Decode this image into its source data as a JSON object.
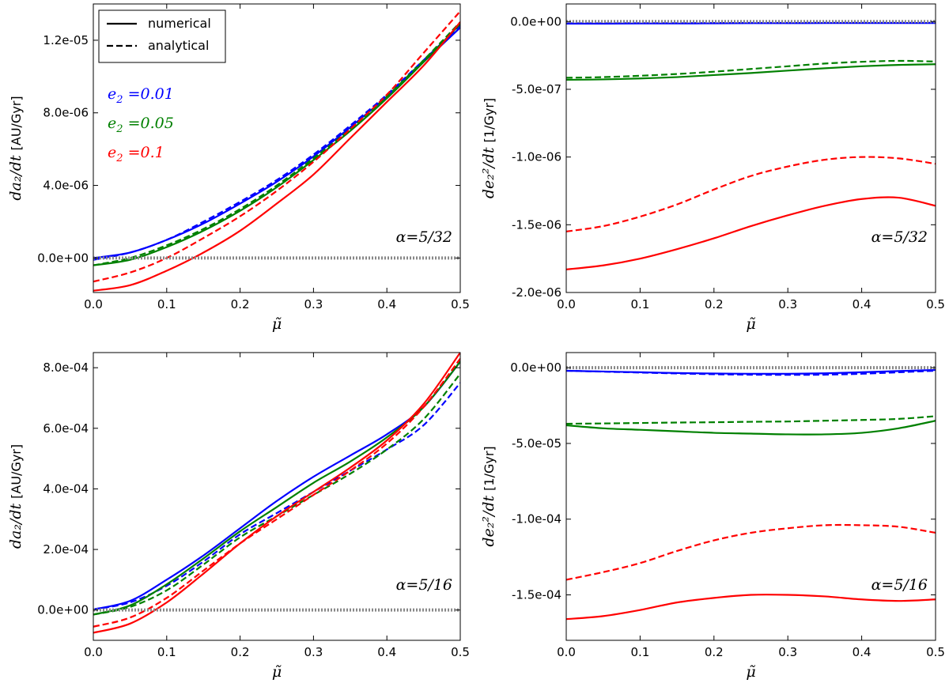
{
  "chart_data": [
    {
      "type": "line",
      "panel": "top-left",
      "xlim": [
        0.0,
        0.5
      ],
      "ylim": [
        -1.9e-06,
        1.4e-05
      ],
      "xticks": [
        "0.0",
        "0.1",
        "0.2",
        "0.3",
        "0.4",
        "0.5"
      ],
      "yticks": [
        {
          "value": 0.0,
          "label": "0.0e+00"
        },
        {
          "value": 4e-06,
          "label": "4.0e-06"
        },
        {
          "value": 8e-06,
          "label": "8.0e-06"
        },
        {
          "value": 1.2e-05,
          "label": "1.2e-05"
        }
      ],
      "xlabel": "μ̃",
      "ylabel": {
        "math": "da₂/dt",
        "unit": "[AU/Gyr]"
      },
      "annotation": {
        "math": "α=5/32",
        "position": "bottom-right"
      },
      "legend": {
        "position": "top-left",
        "entries": [
          {
            "label": "numerical",
            "style": "solid"
          },
          {
            "label": "analytical",
            "style": "dashed"
          }
        ]
      },
      "color_labels": [
        {
          "prefix": "e",
          "sub": "2",
          "value": "=0.01",
          "color": "#0000ff"
        },
        {
          "prefix": "e",
          "sub": "2",
          "value": "=0.05",
          "color": "#008000"
        },
        {
          "prefix": "e",
          "sub": "2",
          "value": "=0.1",
          "color": "#ff0000"
        }
      ],
      "x": [
        0.0,
        0.05,
        0.1,
        0.15,
        0.2,
        0.25,
        0.3,
        0.35,
        0.4,
        0.45,
        0.5
      ],
      "series": [
        {
          "name": "e2=0.01 numerical",
          "color": "#0000ff",
          "style": "solid",
          "values": [
            0.0,
            3e-07,
            1e-06,
            1.9e-06,
            3e-06,
            4.2e-06,
            5.6e-06,
            7.2e-06,
            8.9e-06,
            1.08e-05,
            1.27e-05
          ]
        },
        {
          "name": "e2=0.01 analytical",
          "color": "#0000ff",
          "style": "dashed",
          "values": [
            -1e-07,
            3e-07,
            1e-06,
            2e-06,
            3.1e-06,
            4.3e-06,
            5.7e-06,
            7.3e-06,
            9e-06,
            1.09e-05,
            1.28e-05
          ]
        },
        {
          "name": "e2=0.05 numerical",
          "color": "#008000",
          "style": "solid",
          "values": [
            -4e-07,
            -1e-07,
            6e-07,
            1.5e-06,
            2.6e-06,
            3.9e-06,
            5.4e-06,
            7e-06,
            8.8e-06,
            1.08e-05,
            1.29e-05
          ]
        },
        {
          "name": "e2=0.05 analytical",
          "color": "#008000",
          "style": "dashed",
          "values": [
            -4e-07,
            0.0,
            7e-07,
            1.6e-06,
            2.7e-06,
            4e-06,
            5.5e-06,
            7.1e-06,
            8.9e-06,
            1.09e-05,
            1.3e-05
          ]
        },
        {
          "name": "e2=0.1 numerical",
          "color": "#ff0000",
          "style": "solid",
          "values": [
            -1.8e-06,
            -1.5e-06,
            -7e-07,
            3e-07,
            1.5e-06,
            3e-06,
            4.6e-06,
            6.6e-06,
            8.6e-06,
            1.06e-05,
            1.3e-05
          ]
        },
        {
          "name": "e2=0.1 analytical",
          "color": "#ff0000",
          "style": "dashed",
          "values": [
            -1.3e-06,
            -8e-07,
            0.0,
            1.1e-06,
            2.3e-06,
            3.7e-06,
            5.3e-06,
            7.1e-06,
            9e-06,
            1.13e-05,
            1.36e-05
          ]
        },
        {
          "name": "zero",
          "color": "#888888",
          "style": "dotted",
          "values": [
            0.0,
            0.0,
            0.0,
            0.0,
            0.0,
            0.0,
            0.0,
            0.0,
            0.0,
            0.0,
            0.0
          ]
        }
      ]
    },
    {
      "type": "line",
      "panel": "top-right",
      "xlim": [
        0.0,
        0.5
      ],
      "ylim": [
        -2e-06,
        1.3e-07
      ],
      "xticks": [
        "0.0",
        "0.1",
        "0.2",
        "0.3",
        "0.4",
        "0.5"
      ],
      "yticks": [
        {
          "value": 0.0,
          "label": "0.0e+00"
        },
        {
          "value": -5e-07,
          "label": "-5.0e-07"
        },
        {
          "value": -1e-06,
          "label": "-1.0e-06"
        },
        {
          "value": -1.5e-06,
          "label": "-1.5e-06"
        },
        {
          "value": -2e-06,
          "label": "-2.0e-06"
        }
      ],
      "xlabel": "μ̃",
      "ylabel": {
        "math": "de₂²/dt",
        "unit": "[1/Gyr]"
      },
      "annotation": {
        "math": "α=5/32",
        "position": "bottom-right"
      },
      "x": [
        0.0,
        0.05,
        0.1,
        0.15,
        0.2,
        0.25,
        0.3,
        0.35,
        0.4,
        0.45,
        0.5
      ],
      "series": [
        {
          "name": "e2=0.01 numerical",
          "color": "#0000ff",
          "style": "solid",
          "values": [
            -1.5e-08,
            -1.5e-08,
            -1.4e-08,
            -1.4e-08,
            -1.3e-08,
            -1.2e-08,
            -1.2e-08,
            -1.1e-08,
            -1.1e-08,
            -1.1e-08,
            -1.1e-08
          ]
        },
        {
          "name": "e2=0.01 analytical",
          "color": "#0000ff",
          "style": "dashed",
          "values": [
            -1.3e-08,
            -1.3e-08,
            -1.2e-08,
            -1.2e-08,
            -1.1e-08,
            -1e-08,
            -1e-08,
            -9e-09,
            -9e-09,
            -9e-09,
            -9e-09
          ]
        },
        {
          "name": "e2=0.05 numerical",
          "color": "#008000",
          "style": "solid",
          "values": [
            -4.3e-07,
            -4.27e-07,
            -4.2e-07,
            -4.1e-07,
            -3.95e-07,
            -3.8e-07,
            -3.62e-07,
            -3.45e-07,
            -3.3e-07,
            -3.2e-07,
            -3.15e-07
          ]
        },
        {
          "name": "e2=0.05 analytical",
          "color": "#008000",
          "style": "dashed",
          "values": [
            -4.15e-07,
            -4.1e-07,
            -4e-07,
            -3.87e-07,
            -3.7e-07,
            -3.5e-07,
            -3.3e-07,
            -3.1e-07,
            -2.97e-07,
            -2.9e-07,
            -2.95e-07
          ]
        },
        {
          "name": "e2=0.1 numerical",
          "color": "#ff0000",
          "style": "solid",
          "values": [
            -1.83e-06,
            -1.8e-06,
            -1.75e-06,
            -1.68e-06,
            -1.6e-06,
            -1.51e-06,
            -1.43e-06,
            -1.36e-06,
            -1.31e-06,
            -1.3e-06,
            -1.36e-06
          ]
        },
        {
          "name": "e2=0.1 analytical",
          "color": "#ff0000",
          "style": "dashed",
          "values": [
            -1.55e-06,
            -1.51e-06,
            -1.44e-06,
            -1.35e-06,
            -1.24e-06,
            -1.14e-06,
            -1.07e-06,
            -1.02e-06,
            -1e-06,
            -1.01e-06,
            -1.05e-06
          ]
        },
        {
          "name": "zero",
          "color": "#888888",
          "style": "dotted",
          "values": [
            0.0,
            0.0,
            0.0,
            0.0,
            0.0,
            0.0,
            0.0,
            0.0,
            0.0,
            0.0,
            0.0
          ]
        }
      ]
    },
    {
      "type": "line",
      "panel": "bottom-left",
      "xlim": [
        0.0,
        0.5
      ],
      "ylim": [
        -0.0001,
        0.00085
      ],
      "xticks": [
        "0.0",
        "0.1",
        "0.2",
        "0.3",
        "0.4",
        "0.5"
      ],
      "yticks": [
        {
          "value": 0.0,
          "label": "0.0e+00"
        },
        {
          "value": 0.0002,
          "label": "2.0e-04"
        },
        {
          "value": 0.0004,
          "label": "4.0e-04"
        },
        {
          "value": 0.0006,
          "label": "6.0e-04"
        },
        {
          "value": 0.0008,
          "label": "8.0e-04"
        }
      ],
      "xlabel": "μ̃",
      "ylabel": {
        "math": "da₂/dt",
        "unit": "[AU/Gyr]"
      },
      "annotation": {
        "math": "α=5/16",
        "position": "bottom-right"
      },
      "x": [
        0.0,
        0.05,
        0.1,
        0.15,
        0.2,
        0.25,
        0.3,
        0.35,
        0.4,
        0.45,
        0.5
      ],
      "series": [
        {
          "name": "e2=0.01 numerical",
          "color": "#0000ff",
          "style": "solid",
          "values": [
            2e-06,
            3e-05,
            0.0001,
            0.00018,
            0.00027,
            0.00036,
            0.00044,
            0.00051,
            0.00058,
            0.00067,
            0.00082
          ]
        },
        {
          "name": "e2=0.01 analytical",
          "color": "#0000ff",
          "style": "dashed",
          "values": [
            2e-06,
            2.5e-05,
            8e-05,
            0.00016,
            0.00025,
            0.00032,
            0.00039,
            0.00046,
            0.00053,
            0.00061,
            0.00075
          ]
        },
        {
          "name": "e2=0.05 numerical",
          "color": "#008000",
          "style": "solid",
          "values": [
            -1.5e-05,
            1.5e-05,
            8.5e-05,
            0.00017,
            0.00026,
            0.00034,
            0.00042,
            0.00049,
            0.00057,
            0.00067,
            0.00082
          ]
        },
        {
          "name": "e2=0.05 analytical",
          "color": "#008000",
          "style": "dashed",
          "values": [
            -1.5e-05,
            1e-05,
            6.5e-05,
            0.00015,
            0.00024,
            0.00031,
            0.00038,
            0.00045,
            0.00053,
            0.00063,
            0.00078
          ]
        },
        {
          "name": "e2=0.1 numerical",
          "color": "#ff0000",
          "style": "solid",
          "values": [
            -7.5e-05,
            -4.5e-05,
            2.5e-05,
            0.00012,
            0.00022,
            0.00031,
            0.00039,
            0.00047,
            0.00056,
            0.00068,
            0.00085
          ]
        },
        {
          "name": "e2=0.1 analytical",
          "color": "#ff0000",
          "style": "dashed",
          "values": [
            -5.5e-05,
            -2.5e-05,
            4e-05,
            0.00013,
            0.00022,
            0.0003,
            0.00038,
            0.00046,
            0.00055,
            0.00067,
            0.00083
          ]
        },
        {
          "name": "zero",
          "color": "#888888",
          "style": "dotted",
          "values": [
            0.0,
            0.0,
            0.0,
            0.0,
            0.0,
            0.0,
            0.0,
            0.0,
            0.0,
            0.0,
            0.0
          ]
        }
      ]
    },
    {
      "type": "line",
      "panel": "bottom-right",
      "xlim": [
        0.0,
        0.5
      ],
      "ylim": [
        -0.00018,
        1e-05
      ],
      "xticks": [
        "0.0",
        "0.1",
        "0.2",
        "0.3",
        "0.4",
        "0.5"
      ],
      "yticks": [
        {
          "value": 0.0,
          "label": "0.0e+00"
        },
        {
          "value": -5e-05,
          "label": "-5.0e-05"
        },
        {
          "value": -0.0001,
          "label": "-1.0e-04"
        },
        {
          "value": -0.00015,
          "label": "-1.5e-04"
        }
      ],
      "xlabel": "μ̃",
      "ylabel": {
        "math": "de₂²/dt",
        "unit": "[1/Gyr]"
      },
      "annotation": {
        "math": "α=5/16",
        "position": "bottom-right"
      },
      "x": [
        0.0,
        0.05,
        0.1,
        0.15,
        0.2,
        0.25,
        0.3,
        0.35,
        0.4,
        0.45,
        0.5
      ],
      "series": [
        {
          "name": "e2=0.01 numerical",
          "color": "#0000ff",
          "style": "solid",
          "values": [
            -2e-06,
            -2.5e-06,
            -3e-06,
            -3.5e-06,
            -3.8e-06,
            -4e-06,
            -4e-06,
            -3.7e-06,
            -3e-06,
            -2.2e-06,
            -1.5e-06
          ]
        },
        {
          "name": "e2=0.01 analytical",
          "color": "#0000ff",
          "style": "dashed",
          "values": [
            -2e-06,
            -2.6e-06,
            -3.2e-06,
            -3.8e-06,
            -4.3e-06,
            -4.6e-06,
            -4.7e-06,
            -4.6e-06,
            -4e-06,
            -3e-06,
            -2e-06
          ]
        },
        {
          "name": "e2=0.05 numerical",
          "color": "#008000",
          "style": "solid",
          "values": [
            -3.8e-05,
            -4e-05,
            -4.1e-05,
            -4.2e-05,
            -4.3e-05,
            -4.35e-05,
            -4.4e-05,
            -4.4e-05,
            -4.3e-05,
            -4e-05,
            -3.5e-05
          ]
        },
        {
          "name": "e2=0.05 analytical",
          "color": "#008000",
          "style": "dashed",
          "values": [
            -3.7e-05,
            -3.68e-05,
            -3.65e-05,
            -3.62e-05,
            -3.6e-05,
            -3.57e-05,
            -3.55e-05,
            -3.5e-05,
            -3.45e-05,
            -3.38e-05,
            -3.2e-05
          ]
        },
        {
          "name": "e2=0.1 numerical",
          "color": "#ff0000",
          "style": "solid",
          "values": [
            -0.000166,
            -0.000164,
            -0.00016,
            -0.000155,
            -0.000152,
            -0.00015,
            -0.00015,
            -0.000151,
            -0.000153,
            -0.000154,
            -0.000153
          ]
        },
        {
          "name": "e2=0.1 analytical",
          "color": "#ff0000",
          "style": "dashed",
          "values": [
            -0.00014,
            -0.000135,
            -0.000129,
            -0.000121,
            -0.000114,
            -0.000109,
            -0.000106,
            -0.000104,
            -0.000104,
            -0.000105,
            -0.000109
          ]
        },
        {
          "name": "zero",
          "color": "#888888",
          "style": "dotted",
          "values": [
            0.0,
            0.0,
            0.0,
            0.0,
            0.0,
            0.0,
            0.0,
            0.0,
            0.0,
            0.0,
            0.0
          ]
        }
      ]
    }
  ]
}
